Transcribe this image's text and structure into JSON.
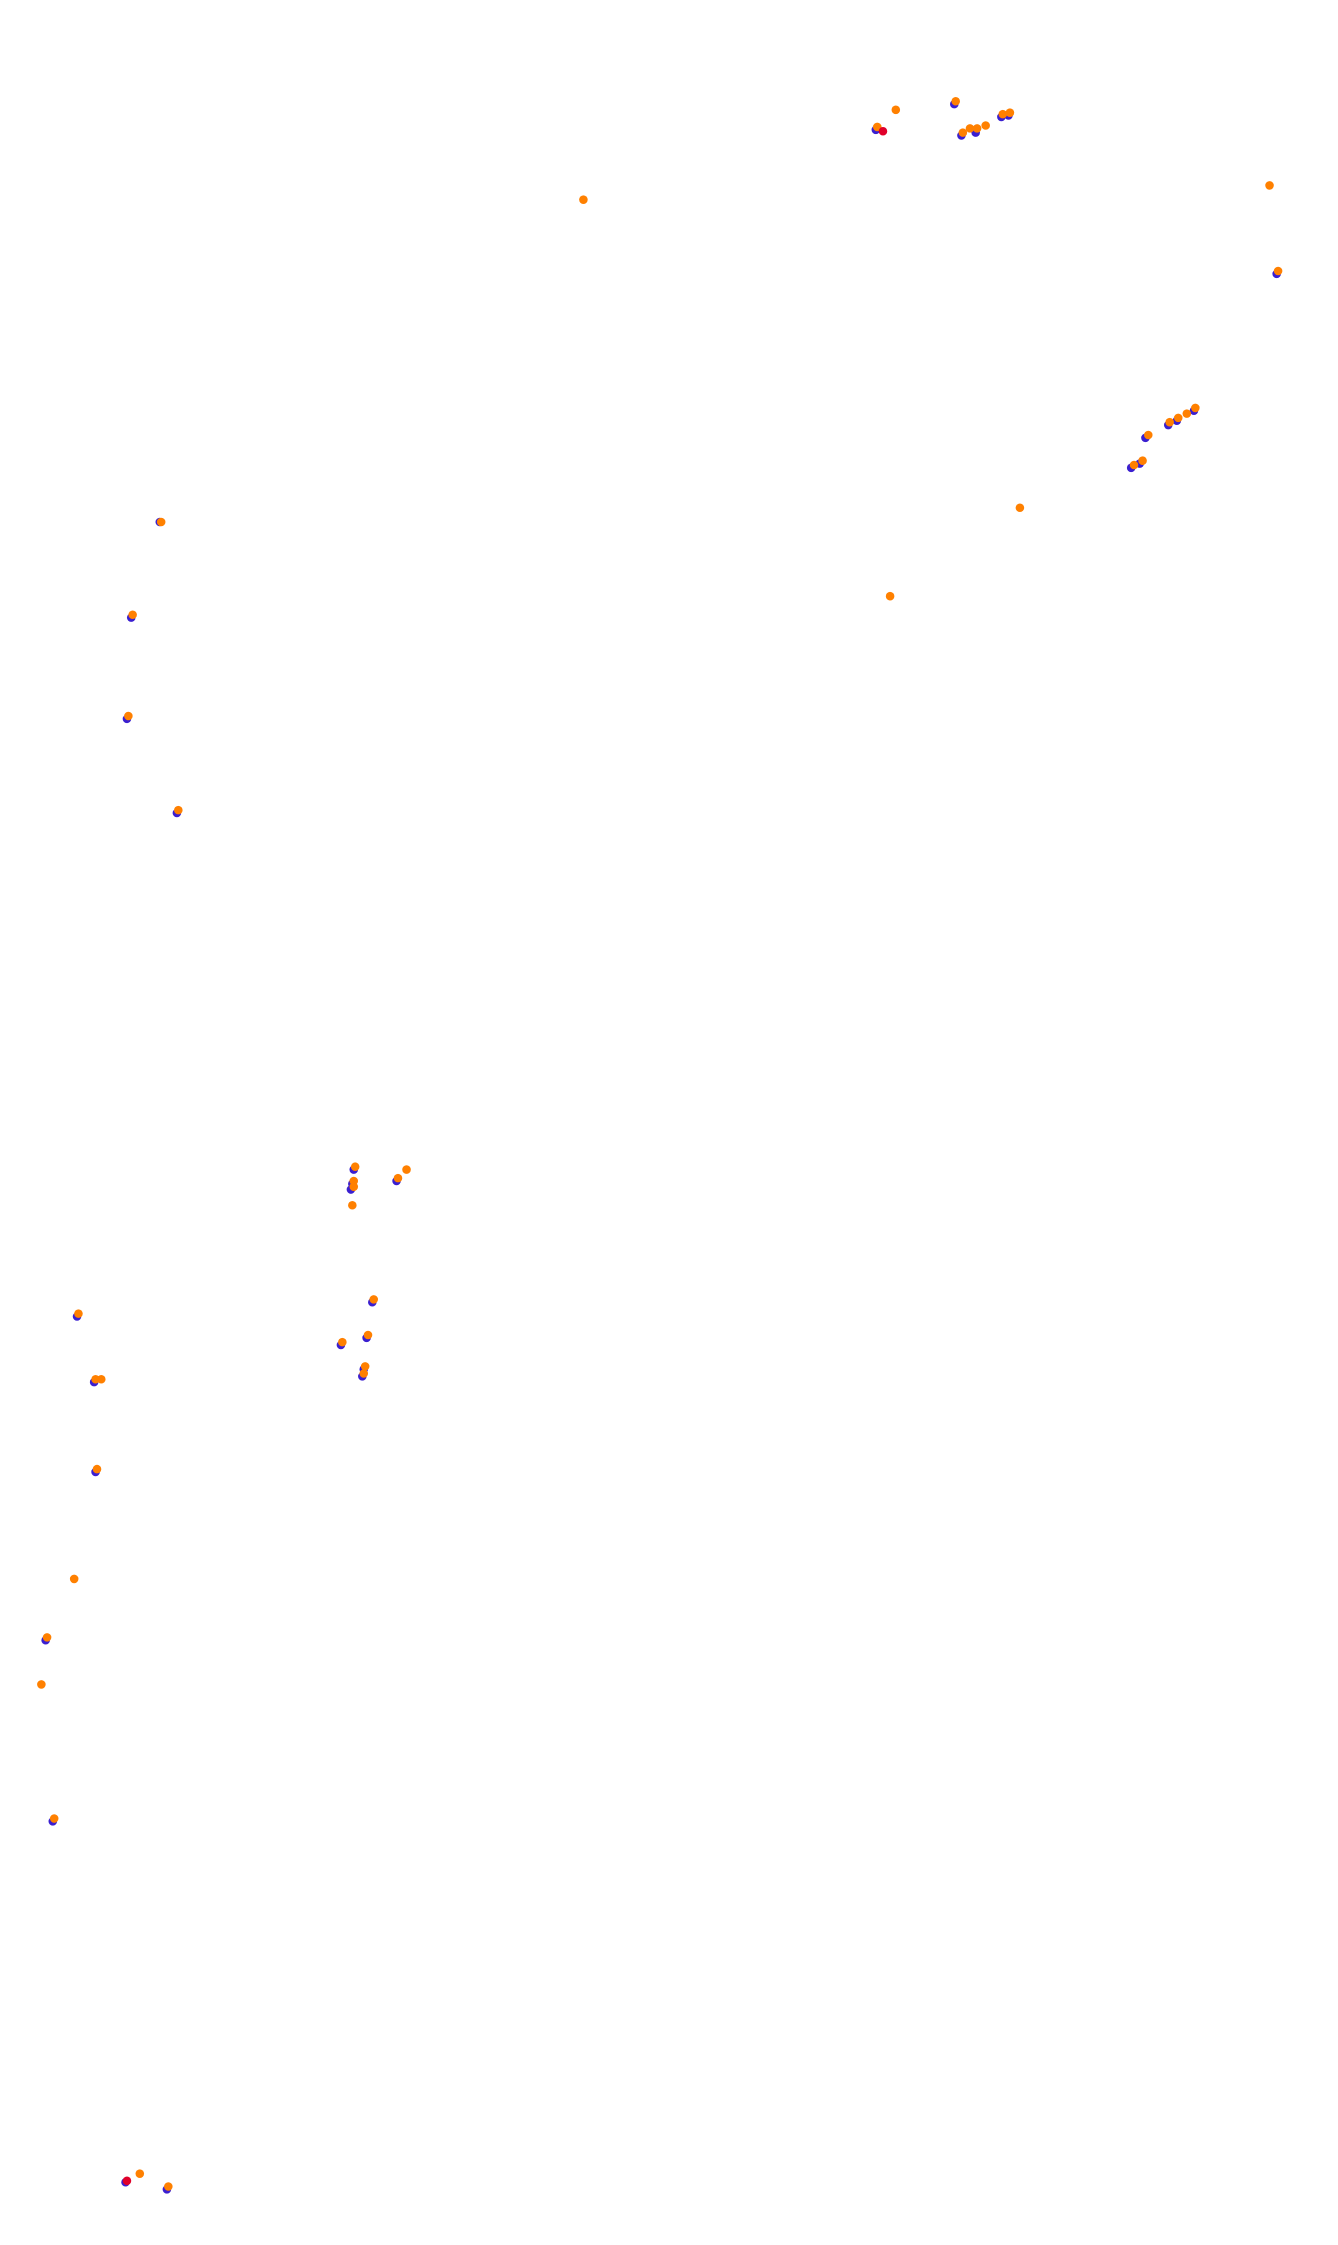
{
  "chart_data": {
    "type": "scatter",
    "xlim": [
      0,
      938
    ],
    "ylim": [
      1574,
      0
    ],
    "marker_radius": 3,
    "series": [
      {
        "color": "#3a1fd0",
        "x": [
          614,
          669,
          674,
          684,
          702,
          707,
          895,
          837,
          825,
          819,
          803,
          799,
          793,
          112,
          92,
          89,
          124,
          248,
          247,
          246,
          278,
          261,
          239,
          257,
          255,
          254,
          54,
          66,
          67,
          32,
          37,
          88,
          117
        ],
        "y": [
          91,
          73,
          95,
          93,
          82,
          81,
          192,
          288,
          295,
          298,
          307,
          325,
          328,
          366,
          433,
          504,
          570,
          820,
          830,
          834,
          828,
          913,
          943,
          938,
          960,
          965,
          923,
          969,
          1032,
          1150,
          1277,
          1530,
          1535
        ]
      },
      {
        "color": "#ff8000",
        "x": [
          628,
          670,
          615,
          675,
          680,
          685,
          691,
          703,
          708,
          409,
          890,
          896,
          838,
          832,
          826,
          820,
          805,
          801,
          795,
          715,
          624,
          113,
          93,
          90,
          125,
          249,
          248,
          248,
          247,
          285,
          279,
          262,
          240,
          258,
          256,
          255,
          55,
          67,
          71,
          68,
          52,
          33,
          29,
          38,
          98,
          118
        ],
        "y": [
          77,
          71,
          89,
          93,
          90,
          90,
          88,
          80,
          79,
          140,
          130,
          190,
          286,
          290,
          293,
          296,
          305,
          323,
          326,
          356,
          418,
          366,
          431,
          502,
          568,
          818,
          828,
          832,
          845,
          820,
          826,
          911,
          941,
          936,
          958,
          963,
          921,
          967,
          967,
          1030,
          1107,
          1148,
          1181,
          1275,
          1524,
          1533
        ]
      },
      {
        "color": "#e0002a",
        "x": [
          619,
          89
        ],
        "y": [
          92,
          1529
        ]
      }
    ]
  }
}
